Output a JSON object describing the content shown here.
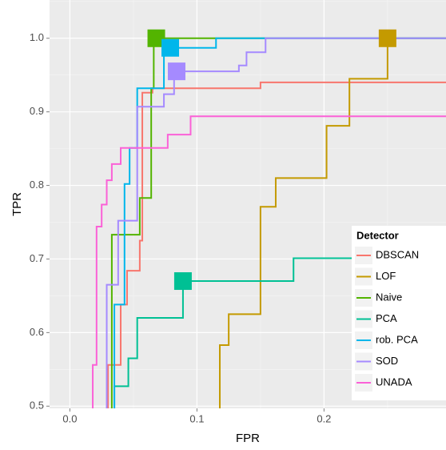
{
  "chart_data": {
    "type": "step",
    "x_label": "FPR",
    "y_label": "TPR",
    "legend_title": "Detector",
    "legend": "bottom-right",
    "grid": true,
    "xlim": [
      -0.016,
      0.296
    ],
    "ylim": [
      0.497,
      1.052
    ],
    "xticks": [
      {
        "value": 0,
        "label": "0.0"
      },
      0.1,
      0.2
    ],
    "yticks": [
      0.5,
      0.6,
      0.7,
      0.8,
      0.9,
      {
        "value": 1,
        "label": "1.0"
      }
    ],
    "series": [
      {
        "name": "DBSCAN",
        "color": "#F8766D",
        "x": [
          0.03,
          0.03,
          0.04,
          0.04,
          0.045,
          0.045,
          0.055,
          0.055,
          0.057,
          0.057,
          0.065,
          0.065,
          0.15,
          0.15,
          0.296
        ],
        "y": [
          0.497,
          0.556,
          0.556,
          0.638,
          0.638,
          0.684,
          0.684,
          0.725,
          0.725,
          0.926,
          0.926,
          0.932,
          0.932,
          0.94,
          0.94
        ]
      },
      {
        "name": "LOF",
        "color": "#C49A00",
        "x": [
          0.118,
          0.118,
          0.125,
          0.125,
          0.15,
          0.15,
          0.162,
          0.162,
          0.202,
          0.202,
          0.22,
          0.22,
          0.25,
          0.25,
          0.296
        ],
        "y": [
          0.497,
          0.583,
          0.583,
          0.625,
          0.625,
          0.771,
          0.771,
          0.81,
          0.81,
          0.881,
          0.881,
          0.945,
          0.945,
          1.0,
          1.0
        ],
        "marker": [
          0.25,
          1.0
        ]
      },
      {
        "name": "Naive",
        "color": "#53B400",
        "x": [
          0.033,
          0.033,
          0.055,
          0.055,
          0.064,
          0.064,
          0.066,
          0.066,
          0.296
        ],
        "y": [
          0.497,
          0.733,
          0.733,
          0.783,
          0.783,
          0.932,
          0.932,
          1.0,
          1.0
        ],
        "marker": [
          0.068,
          1.0
        ]
      },
      {
        "name": "PCA",
        "color": "#00C094",
        "x": [
          0.035,
          0.035,
          0.046,
          0.046,
          0.053,
          0.053,
          0.089,
          0.089,
          0.176,
          0.176,
          0.296
        ],
        "y": [
          0.497,
          0.527,
          0.527,
          0.565,
          0.565,
          0.62,
          0.62,
          0.67,
          0.67,
          0.701,
          0.701
        ],
        "marker": [
          0.089,
          0.67
        ]
      },
      {
        "name": "rob. PCA",
        "color": "#00B6EB",
        "x": [
          0.035,
          0.035,
          0.043,
          0.043,
          0.047,
          0.047,
          0.053,
          0.053,
          0.074,
          0.074,
          0.115,
          0.115,
          0.296
        ],
        "y": [
          0.497,
          0.638,
          0.638,
          0.802,
          0.802,
          0.851,
          0.851,
          0.932,
          0.932,
          0.987,
          0.987,
          1.0,
          1.0
        ],
        "marker": [
          0.079,
          0.987
        ]
      },
      {
        "name": "SOD",
        "color": "#A58AFF",
        "x": [
          0.029,
          0.029,
          0.038,
          0.038,
          0.053,
          0.053,
          0.074,
          0.074,
          0.082,
          0.082,
          0.133,
          0.133,
          0.139,
          0.139,
          0.154,
          0.154,
          0.296
        ],
        "y": [
          0.497,
          0.665,
          0.665,
          0.752,
          0.752,
          0.907,
          0.907,
          0.924,
          0.924,
          0.955,
          0.955,
          0.963,
          0.963,
          0.981,
          0.981,
          1.0,
          1.0
        ],
        "marker": [
          0.084,
          0.955
        ]
      },
      {
        "name": "UNADA",
        "color": "#FB61D7",
        "x": [
          0.018,
          0.018,
          0.021,
          0.021,
          0.025,
          0.025,
          0.029,
          0.029,
          0.033,
          0.033,
          0.04,
          0.04,
          0.077,
          0.077,
          0.095,
          0.095,
          0.296
        ],
        "y": [
          0.497,
          0.556,
          0.556,
          0.744,
          0.744,
          0.774,
          0.774,
          0.807,
          0.807,
          0.829,
          0.829,
          0.851,
          0.851,
          0.869,
          0.869,
          0.894,
          0.894
        ]
      }
    ]
  }
}
